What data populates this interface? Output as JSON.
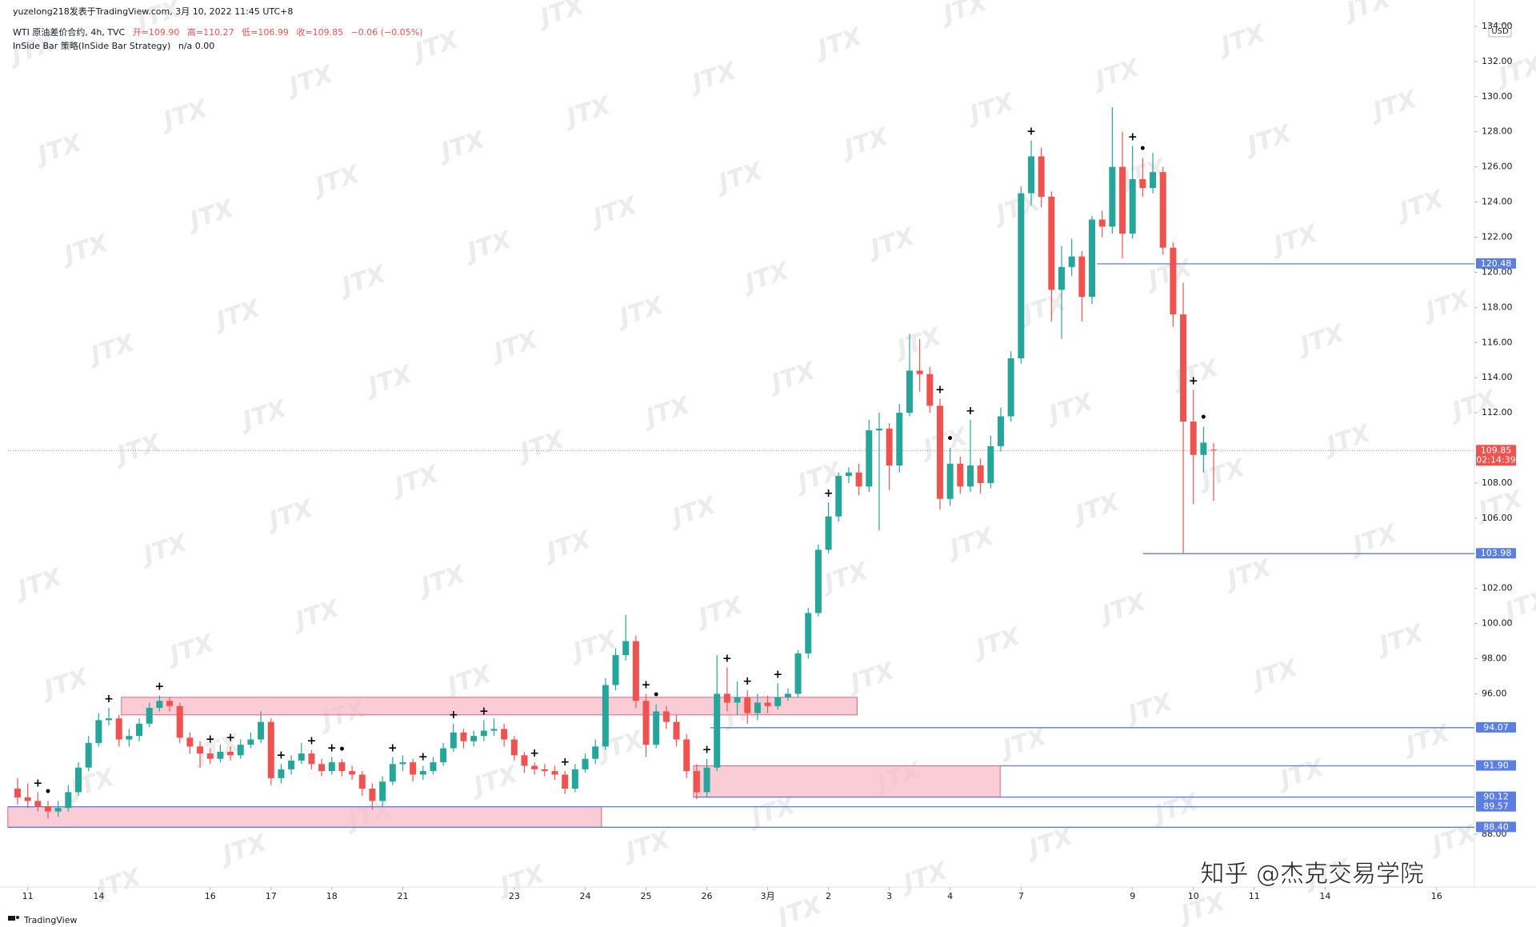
{
  "header": {
    "author_line": "yuzelong218发表于TradingView.com, 3月 10, 2022 11:45 UTC+8",
    "symbol": "WTI 原油差价合约, 4h, TVC",
    "ohlc_text": [
      "开=109.90",
      "高=110.27",
      "低=106.99",
      "收=109.85",
      "−0.06 (−0.05%)"
    ],
    "indicator": "InSide Bar 策略(InSide Bar Strategy)",
    "indicator_values": "n/a  0.00"
  },
  "chart_data": {
    "type": "candlestick",
    "currency": "USD",
    "up_color": "#26a69a",
    "down_color": "#ef5350",
    "level_color": "#5b7ee5",
    "zone_color": "#f8bbc8",
    "zone_stroke": "#e5607f",
    "categories": [
      null,
      "11",
      null,
      null,
      null,
      null,
      null,
      null,
      "14",
      null,
      null,
      null,
      null,
      null,
      null,
      null,
      null,
      null,
      null,
      "16",
      null,
      null,
      null,
      null,
      null,
      "17",
      null,
      null,
      null,
      null,
      null,
      "18",
      null,
      null,
      null,
      null,
      null,
      null,
      "21",
      null,
      null,
      null,
      null,
      null,
      null,
      null,
      null,
      null,
      null,
      "23",
      null,
      null,
      null,
      null,
      null,
      null,
      "24",
      null,
      null,
      null,
      null,
      null,
      "25",
      null,
      null,
      null,
      null,
      null,
      "26",
      null,
      null,
      null,
      null,
      null,
      "3月",
      null,
      null,
      null,
      null,
      null,
      "2",
      null,
      null,
      null,
      null,
      null,
      "3",
      null,
      null,
      null,
      null,
      null,
      "4",
      null,
      null,
      null,
      null,
      null,
      null,
      "7",
      null,
      null,
      null,
      null,
      null,
      null,
      null,
      null,
      null,
      null,
      "9",
      null,
      null,
      null,
      null,
      null,
      "10",
      null,
      null,
      null,
      null,
      null,
      "11",
      null,
      null,
      null,
      null,
      null,
      null,
      "14",
      null,
      null,
      null,
      null,
      null,
      null,
      null,
      null,
      null,
      null,
      "16"
    ],
    "ohlc": [
      [
        90.6,
        91.2,
        89.7,
        90.1
      ],
      [
        90.1,
        90.9,
        89.5,
        89.9
      ],
      [
        89.9,
        90.4,
        89.3,
        89.6
      ],
      [
        89.6,
        89.9,
        88.9,
        89.3
      ],
      [
        89.3,
        89.9,
        89.0,
        89.5
      ],
      [
        89.5,
        90.8,
        89.3,
        90.4
      ],
      [
        90.4,
        92.1,
        90.2,
        91.8
      ],
      [
        91.8,
        93.6,
        91.6,
        93.2
      ],
      [
        93.2,
        94.9,
        93.0,
        94.5
      ],
      [
        94.5,
        95.2,
        94.2,
        94.6
      ],
      [
        94.6,
        94.8,
        93.0,
        93.4
      ],
      [
        93.4,
        94.0,
        93.0,
        93.6
      ],
      [
        93.6,
        94.6,
        93.3,
        94.3
      ],
      [
        94.3,
        95.5,
        94.1,
        95.2
      ],
      [
        95.2,
        95.9,
        95.0,
        95.6
      ],
      [
        95.6,
        95.8,
        95.0,
        95.3
      ],
      [
        95.3,
        95.5,
        93.2,
        93.5
      ],
      [
        93.5,
        93.8,
        92.6,
        93.0
      ],
      [
        93.0,
        93.3,
        91.8,
        92.6
      ],
      [
        92.6,
        92.9,
        92.0,
        92.3
      ],
      [
        92.3,
        93.1,
        92.1,
        92.7
      ],
      [
        92.7,
        93.0,
        92.2,
        92.5
      ],
      [
        92.5,
        93.4,
        92.3,
        93.1
      ],
      [
        93.1,
        93.8,
        92.9,
        93.4
      ],
      [
        93.4,
        95.0,
        93.2,
        94.4
      ],
      [
        94.4,
        94.6,
        90.8,
        91.2
      ],
      [
        91.2,
        92.0,
        90.9,
        91.7
      ],
      [
        91.7,
        92.5,
        91.4,
        92.2
      ],
      [
        92.2,
        93.2,
        92.0,
        92.6
      ],
      [
        92.6,
        92.8,
        91.7,
        92.0
      ],
      [
        92.0,
        92.3,
        91.3,
        91.6
      ],
      [
        91.6,
        92.4,
        91.4,
        92.1
      ],
      [
        92.1,
        92.3,
        91.3,
        91.6
      ],
      [
        91.6,
        91.9,
        91.1,
        91.4
      ],
      [
        91.4,
        91.6,
        90.2,
        90.6
      ],
      [
        90.6,
        90.9,
        89.4,
        89.9
      ],
      [
        89.9,
        91.3,
        89.6,
        91.0
      ],
      [
        91.0,
        92.4,
        90.8,
        92.0
      ],
      [
        92.0,
        92.5,
        91.6,
        92.1
      ],
      [
        92.1,
        92.3,
        91.0,
        91.4
      ],
      [
        91.4,
        91.9,
        91.1,
        91.6
      ],
      [
        91.6,
        92.4,
        91.4,
        92.1
      ],
      [
        92.1,
        93.2,
        91.9,
        92.9
      ],
      [
        92.9,
        94.3,
        92.7,
        93.8
      ],
      [
        93.8,
        94.0,
        92.9,
        93.3
      ],
      [
        93.3,
        93.9,
        93.0,
        93.6
      ],
      [
        93.6,
        94.5,
        93.3,
        93.9
      ],
      [
        93.9,
        94.6,
        93.6,
        94.0
      ],
      [
        94.0,
        94.3,
        93.0,
        93.4
      ],
      [
        93.4,
        93.6,
        92.2,
        92.5
      ],
      [
        92.5,
        92.7,
        91.5,
        91.9
      ],
      [
        91.9,
        92.1,
        91.4,
        91.7
      ],
      [
        91.7,
        92.0,
        91.3,
        91.6
      ],
      [
        91.6,
        91.9,
        91.1,
        91.4
      ],
      [
        91.4,
        91.6,
        90.3,
        90.6
      ],
      [
        90.6,
        92.0,
        90.4,
        91.7
      ],
      [
        91.7,
        92.6,
        91.5,
        92.3
      ],
      [
        92.3,
        93.4,
        92.0,
        93.0
      ],
      [
        93.0,
        96.9,
        92.8,
        96.5
      ],
      [
        96.5,
        98.6,
        96.2,
        98.2
      ],
      [
        98.2,
        100.5,
        97.9,
        99.0
      ],
      [
        99.0,
        99.3,
        95.2,
        95.6
      ],
      [
        95.6,
        96.0,
        92.4,
        93.1
      ],
      [
        93.1,
        95.4,
        92.9,
        95.0
      ],
      [
        95.0,
        95.3,
        94.0,
        94.4
      ],
      [
        94.4,
        94.8,
        93.0,
        93.4
      ],
      [
        93.4,
        93.7,
        91.2,
        91.6
      ],
      [
        91.6,
        92.0,
        90.0,
        90.4
      ],
      [
        90.4,
        92.3,
        90.1,
        91.8
      ],
      [
        91.8,
        98.2,
        91.6,
        96.0
      ],
      [
        96.0,
        97.5,
        95.0,
        95.5
      ],
      [
        95.5,
        96.7,
        94.8,
        95.8
      ],
      [
        95.8,
        96.2,
        94.3,
        94.9
      ],
      [
        94.9,
        96.0,
        94.5,
        95.5
      ],
      [
        95.5,
        95.9,
        94.9,
        95.3
      ],
      [
        95.3,
        96.6,
        95.1,
        95.8
      ],
      [
        95.8,
        96.3,
        95.6,
        96.0
      ],
      [
        96.0,
        98.5,
        95.8,
        98.3
      ],
      [
        98.3,
        100.9,
        98.0,
        100.6
      ],
      [
        100.6,
        104.5,
        100.4,
        104.2
      ],
      [
        104.2,
        106.9,
        104.0,
        106.1
      ],
      [
        106.1,
        108.6,
        105.8,
        108.4
      ],
      [
        108.4,
        108.9,
        108.0,
        108.6
      ],
      [
        108.6,
        109.1,
        107.3,
        107.8
      ],
      [
        107.8,
        111.6,
        107.5,
        111.0
      ],
      [
        111.0,
        112.0,
        105.3,
        111.1
      ],
      [
        111.1,
        111.4,
        107.6,
        109.0
      ],
      [
        109.0,
        112.5,
        108.6,
        112.0
      ],
      [
        112.0,
        116.5,
        111.8,
        114.4
      ],
      [
        114.4,
        116.2,
        113.2,
        114.2
      ],
      [
        114.2,
        114.6,
        112.0,
        112.4
      ],
      [
        112.4,
        112.8,
        106.5,
        107.1
      ],
      [
        107.1,
        110.0,
        106.7,
        109.1
      ],
      [
        109.1,
        109.5,
        107.4,
        107.8
      ],
      [
        107.8,
        111.6,
        107.5,
        109.0
      ],
      [
        109.0,
        109.4,
        107.4,
        108.0
      ],
      [
        108.0,
        110.7,
        107.7,
        110.1
      ],
      [
        110.1,
        112.3,
        109.8,
        111.8
      ],
      [
        111.8,
        115.5,
        111.5,
        115.1
      ],
      [
        115.1,
        124.9,
        114.8,
        124.5
      ],
      [
        124.5,
        127.5,
        123.8,
        126.6
      ],
      [
        126.6,
        127.1,
        123.7,
        124.3
      ],
      [
        124.3,
        124.6,
        117.2,
        119.0
      ],
      [
        119.0,
        121.5,
        116.2,
        120.3
      ],
      [
        120.3,
        121.9,
        119.8,
        120.9
      ],
      [
        120.9,
        121.2,
        117.2,
        118.6
      ],
      [
        118.6,
        123.2,
        118.2,
        123.0
      ],
      [
        123.0,
        123.5,
        122.0,
        122.6
      ],
      [
        122.6,
        129.4,
        122.2,
        126.0
      ],
      [
        126.0,
        128.0,
        120.8,
        122.2
      ],
      [
        122.2,
        127.2,
        121.9,
        125.3
      ],
      [
        125.3,
        126.5,
        124.3,
        124.8
      ],
      [
        124.8,
        126.8,
        124.5,
        125.7
      ],
      [
        125.7,
        126.0,
        121.0,
        121.4
      ],
      [
        121.4,
        121.7,
        116.9,
        117.6
      ],
      [
        117.6,
        119.4,
        103.98,
        111.5
      ],
      [
        111.5,
        113.3,
        106.8,
        109.6
      ],
      [
        109.6,
        111.2,
        108.6,
        110.3
      ],
      [
        109.9,
        110.27,
        106.99,
        109.85
      ],
      null,
      null,
      null,
      null,
      null,
      null,
      null,
      null,
      null,
      null,
      null,
      null,
      null,
      null,
      null,
      null,
      null,
      null,
      null,
      null,
      null,
      null
    ],
    "ylim": [
      85,
      134.5
    ],
    "yticks": [
      {
        "value": 134,
        "label": "134.00"
      },
      {
        "value": 132,
        "label": "132.00"
      },
      {
        "value": 130,
        "label": "130.00"
      },
      {
        "value": 128,
        "label": "128.00"
      },
      {
        "value": 126,
        "label": "126.00"
      },
      {
        "value": 124,
        "label": "124.00"
      },
      {
        "value": 122,
        "label": "122.00"
      },
      {
        "value": 120,
        "label": "120.00"
      },
      {
        "value": 118,
        "label": "118.00"
      },
      {
        "value": 116,
        "label": "116.00"
      },
      {
        "value": 114,
        "label": "114.00"
      },
      {
        "value": 112,
        "label": "112.00"
      },
      {
        "value": 108,
        "label": "108.00"
      },
      {
        "value": 106,
        "label": "106.00"
      },
      {
        "value": 102,
        "label": "102.00"
      },
      {
        "value": 100,
        "label": "100.00"
      },
      {
        "value": 98,
        "label": "98.00"
      },
      {
        "value": 96,
        "label": "96.00"
      },
      {
        "value": 88,
        "label": "88.00"
      }
    ],
    "levels": [
      {
        "value": 120.48,
        "label": "120.48"
      },
      {
        "value": 103.98,
        "label": "103.98"
      },
      {
        "value": 94.07,
        "label": "94.07"
      },
      {
        "value": 91.9,
        "label": "91.90"
      },
      {
        "value": 90.12,
        "label": "90.12"
      },
      {
        "value": 89.57,
        "label": "89.57"
      },
      {
        "value": 88.4,
        "label": "88.40"
      }
    ],
    "zones": [
      {
        "from": 94.8,
        "to": 95.8
      },
      {
        "from": 90.12,
        "to": 91.9
      },
      {
        "from": 88.4,
        "to": 89.57
      }
    ],
    "last_price": {
      "value": 109.85,
      "label": "109.85",
      "countdown": "02:14:39"
    },
    "signals": [
      {
        "candle": 2,
        "mark": "+"
      },
      {
        "candle": 3,
        "mark": "•"
      },
      {
        "candle": 9,
        "mark": "+"
      },
      {
        "candle": 14,
        "mark": "+"
      },
      {
        "candle": 19,
        "mark": "+"
      },
      {
        "candle": 21,
        "mark": "+"
      },
      {
        "candle": 26,
        "mark": "+"
      },
      {
        "candle": 29,
        "mark": "+"
      },
      {
        "candle": 31,
        "mark": "+"
      },
      {
        "candle": 32,
        "mark": "•"
      },
      {
        "candle": 37,
        "mark": "+"
      },
      {
        "candle": 40,
        "mark": "+"
      },
      {
        "candle": 43,
        "mark": "+"
      },
      {
        "candle": 46,
        "mark": "+"
      },
      {
        "candle": 51,
        "mark": "+"
      },
      {
        "candle": 54,
        "mark": "+"
      },
      {
        "candle": 62,
        "mark": "+"
      },
      {
        "candle": 63,
        "mark": "•"
      },
      {
        "candle": 68,
        "mark": "+"
      },
      {
        "candle": 70,
        "mark": "+"
      },
      {
        "candle": 72,
        "mark": "+"
      },
      {
        "candle": 75,
        "mark": "+"
      },
      {
        "candle": 80,
        "mark": "+"
      },
      {
        "candle": 91,
        "mark": "+"
      },
      {
        "candle": 92,
        "mark": "•"
      },
      {
        "candle": 94,
        "mark": "+"
      },
      {
        "candle": 100,
        "mark": "+"
      },
      {
        "candle": 110,
        "mark": "+"
      },
      {
        "candle": 111,
        "mark": "•"
      },
      {
        "candle": 116,
        "mark": "+"
      },
      {
        "candle": 117,
        "mark": "•"
      }
    ]
  },
  "watermark": "JTX",
  "zhihu": "知乎 @杰克交易学院",
  "footer": "TradingView"
}
